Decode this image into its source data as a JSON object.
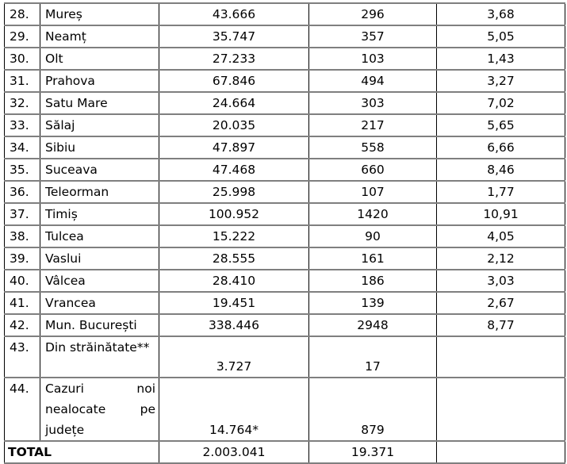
{
  "rows": [
    {
      "idx": "28.",
      "name": "Mureș",
      "a": "43.666",
      "b": "296",
      "c": "3,68"
    },
    {
      "idx": "29.",
      "name": "Neamț",
      "a": "35.747",
      "b": "357",
      "c": "5,05"
    },
    {
      "idx": "30.",
      "name": "Olt",
      "a": "27.233",
      "b": "103",
      "c": "1,43"
    },
    {
      "idx": "31.",
      "name": "Prahova",
      "a": "67.846",
      "b": "494",
      "c": "3,27"
    },
    {
      "idx": "32.",
      "name": "Satu Mare",
      "a": "24.664",
      "b": "303",
      "c": "7,02"
    },
    {
      "idx": "33.",
      "name": "Sălaj",
      "a": "20.035",
      "b": "217",
      "c": "5,65"
    },
    {
      "idx": "34.",
      "name": "Sibiu",
      "a": "47.897",
      "b": "558",
      "c": "6,66"
    },
    {
      "idx": "35.",
      "name": "Suceava",
      "a": "47.468",
      "b": "660",
      "c": "8,46"
    },
    {
      "idx": "36.",
      "name": "Teleorman",
      "a": "25.998",
      "b": "107",
      "c": "1,77"
    },
    {
      "idx": "37.",
      "name": "Timiș",
      "a": "100.952",
      "b": "1420",
      "c": "10,91"
    },
    {
      "idx": "38.",
      "name": "Tulcea",
      "a": "15.222",
      "b": "90",
      "c": "4,05"
    },
    {
      "idx": "39.",
      "name": "Vaslui",
      "a": "28.555",
      "b": "161",
      "c": "2,12"
    },
    {
      "idx": "40.",
      "name": "Vâlcea",
      "a": "28.410",
      "b": "186",
      "c": "3,03"
    },
    {
      "idx": "41.",
      "name": "Vrancea",
      "a": "19.451",
      "b": "139",
      "c": "2,67"
    },
    {
      "idx": "42.",
      "name": "Mun. București",
      "a": "338.446",
      "b": "2948",
      "c": "8,77"
    },
    {
      "idx": "43.",
      "name": "Din străinătate**",
      "a": "3.727",
      "b": "17",
      "c": ""
    },
    {
      "idx": "44.",
      "name": "Cazuri noi nealocate pe județe",
      "a": "14.764*",
      "b": "879",
      "c": ""
    }
  ],
  "total": {
    "label": "TOTAL",
    "a": "2.003.041",
    "b": "19.371",
    "c": ""
  }
}
